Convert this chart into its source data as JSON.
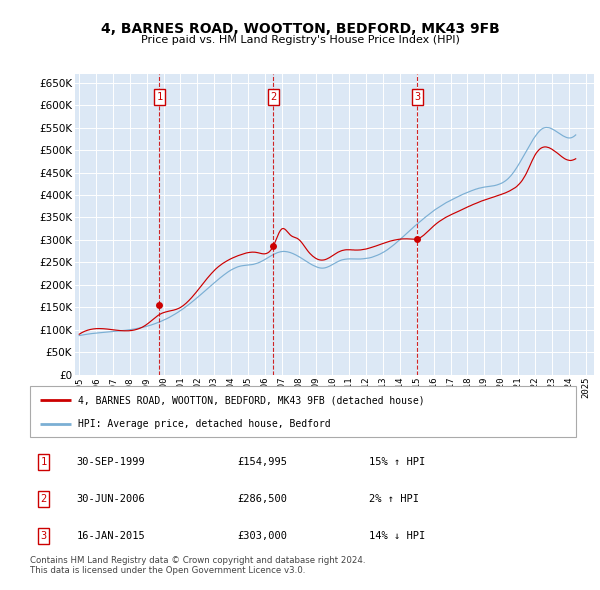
{
  "title": "4, BARNES ROAD, WOOTTON, BEDFORD, MK43 9FB",
  "subtitle": "Price paid vs. HM Land Registry's House Price Index (HPI)",
  "ytick_values": [
    0,
    50000,
    100000,
    150000,
    200000,
    250000,
    300000,
    350000,
    400000,
    450000,
    500000,
    550000,
    600000,
    650000
  ],
  "xlim_start": 1994.75,
  "xlim_end": 2025.5,
  "ylim_min": 0,
  "ylim_max": 670000,
  "background_color": "#dce8f5",
  "sale_color": "#cc0000",
  "hpi_color": "#7bafd4",
  "transactions": [
    {
      "date_x": 1999.75,
      "price": 154995,
      "label": "1",
      "date_str": "30-SEP-1999",
      "price_str": "£154,995",
      "hpi_diff": "15% ↑ HPI"
    },
    {
      "date_x": 2006.5,
      "price": 286500,
      "label": "2",
      "date_str": "30-JUN-2006",
      "price_str": "£286,500",
      "hpi_diff": "2% ↑ HPI"
    },
    {
      "date_x": 2015.04,
      "price": 303000,
      "label": "3",
      "date_str": "16-JAN-2015",
      "price_str": "£303,000",
      "hpi_diff": "14% ↓ HPI"
    }
  ],
  "legend_label_red": "4, BARNES ROAD, WOOTTON, BEDFORD, MK43 9FB (detached house)",
  "legend_label_blue": "HPI: Average price, detached house, Bedford",
  "footnote": "Contains HM Land Registry data © Crown copyright and database right 2024.\nThis data is licensed under the Open Government Licence v3.0.",
  "xtick_years": [
    1995,
    1996,
    1997,
    1998,
    1999,
    2000,
    2001,
    2002,
    2003,
    2004,
    2005,
    2006,
    2007,
    2008,
    2009,
    2010,
    2011,
    2012,
    2013,
    2014,
    2015,
    2016,
    2017,
    2018,
    2019,
    2020,
    2021,
    2022,
    2023,
    2024,
    2025
  ]
}
